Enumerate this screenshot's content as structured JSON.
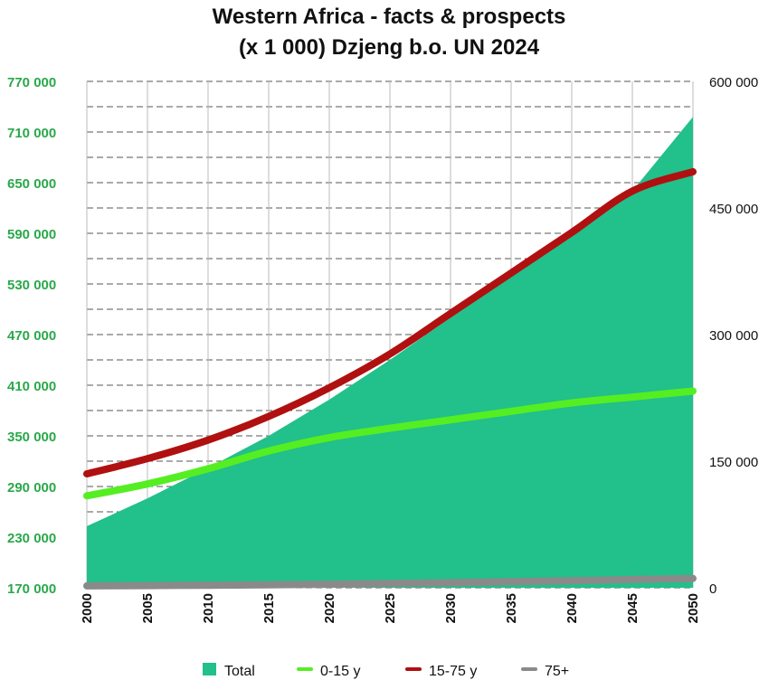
{
  "chart_data": {
    "type": "area",
    "title_lines": [
      "Western Africa - facts & prospects",
      "(x 1 000) Dzjeng b.o. UN 2024"
    ],
    "x": [
      2000,
      2005,
      2010,
      2015,
      2020,
      2025,
      2030,
      2035,
      2040,
      2045,
      2050
    ],
    "x_ticks": [
      "2000",
      "2005",
      "2010",
      "2015",
      "2020",
      "2025",
      "2030",
      "2035",
      "2040",
      "2045",
      "2050"
    ],
    "y_left": {
      "range": [
        170000,
        770000
      ],
      "ticks": [
        170000,
        230000,
        290000,
        350000,
        410000,
        470000,
        530000,
        590000,
        650000,
        710000,
        770000
      ],
      "tick_labels": [
        "170 000",
        "230 000",
        "290 000",
        "350 000",
        "410 000",
        "470 000",
        "530 000",
        "590 000",
        "650 000",
        "710 000",
        "770 000"
      ],
      "color": "#2aa84a"
    },
    "y_right": {
      "range": [
        0,
        600000
      ],
      "ticks": [
        0,
        150000,
        300000,
        450000,
        600000
      ],
      "tick_labels": [
        "0",
        "150 000",
        "300 000",
        "450 000",
        "600 000"
      ],
      "color": "#111111"
    },
    "grid": true,
    "legend_position": "bottom",
    "series": [
      {
        "name": "Total",
        "kind": "area",
        "axis": "left",
        "color": "#22c08a",
        "values": [
          243000,
          276000,
          312000,
          350000,
          393000,
          440000,
          490000,
          540000,
          590000,
          640000,
          728000
        ]
      },
      {
        "name": "0-15 y",
        "kind": "line",
        "axis": "right",
        "color": "#55ee22",
        "values": [
          109000,
          123000,
          141000,
          162000,
          178000,
          189000,
          199000,
          209000,
          219000,
          226000,
          233000
        ]
      },
      {
        "name": "15-75 y",
        "kind": "line",
        "axis": "right",
        "color": "#b01010",
        "values": [
          135000,
          153000,
          175000,
          203000,
          237000,
          277000,
          325000,
          373000,
          421000,
          470000,
          493000
        ]
      },
      {
        "name": "75+",
        "kind": "line",
        "axis": "right",
        "color": "#8a8a8a",
        "values": [
          2200,
          2600,
          3000,
          3500,
          4200,
          5000,
          6000,
          7200,
          8400,
          9700,
          11000
        ]
      }
    ]
  }
}
